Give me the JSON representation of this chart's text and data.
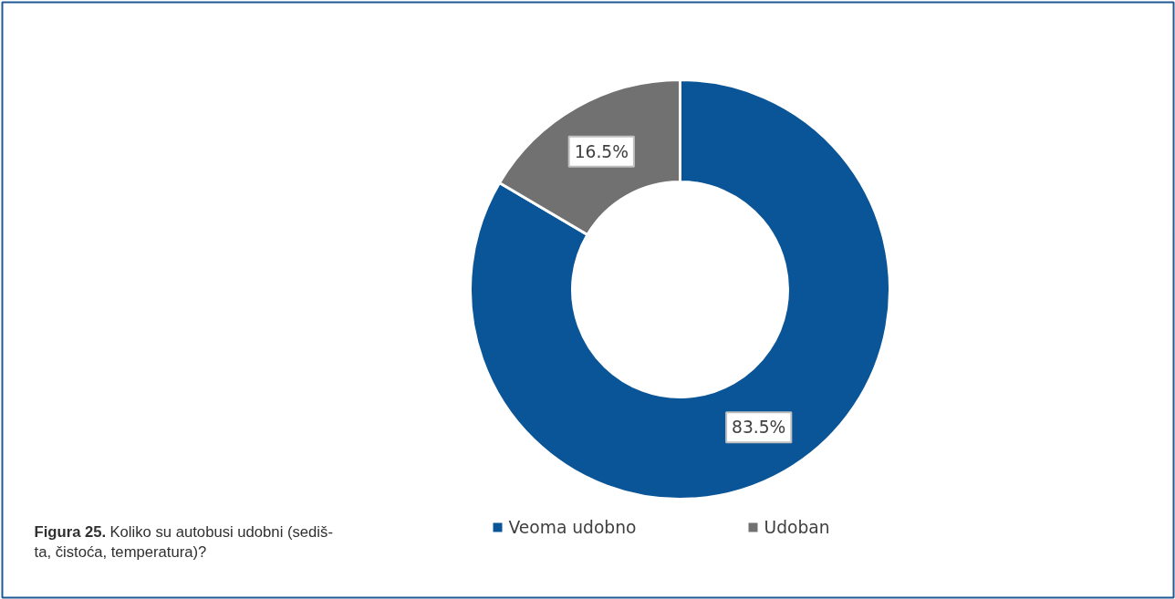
{
  "chart_data": {
    "type": "donut",
    "categories": [
      "Veoma udobno",
      "Udoban"
    ],
    "values": [
      83.5,
      16.5
    ],
    "colors": [
      "#0a5597",
      "#717171"
    ],
    "value_labels": [
      "83.5%",
      "16.5%"
    ],
    "legend": "bottom",
    "annotations": [
      "Figura 25. Koliko su autobusi udobni (sediš-\nta, čistoća, temperatura)?"
    ]
  }
}
